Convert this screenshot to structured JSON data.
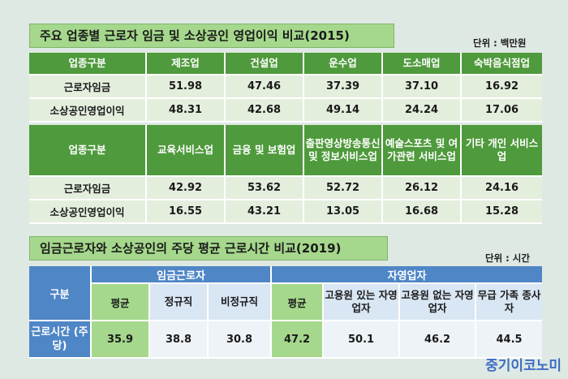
{
  "section1": {
    "title": "주요 업종별 근로자 임금 및 소상공인 영업이익 비교(2015)",
    "unit": "단위 : 백만원",
    "block1": {
      "header": [
        "업종구분",
        "제조업",
        "건설업",
        "운수업",
        "도소매업",
        "숙박음식점업"
      ],
      "rows": [
        {
          "label": "근로자임금",
          "values": [
            "51.98",
            "47.46",
            "37.39",
            "37.10",
            "16.92"
          ]
        },
        {
          "label": "소상공인영업이익",
          "values": [
            "48.31",
            "42.68",
            "49.14",
            "24.24",
            "17.06"
          ]
        }
      ]
    },
    "block2": {
      "header": [
        "업종구분",
        "교육서비스업",
        "금융 및 보험업",
        "출판영상방송통신 및 정보서비스업",
        "예술스포츠 및 여가관련 서비스업",
        "기타 개인 서비스업"
      ],
      "rows": [
        {
          "label": "근로자임금",
          "values": [
            "42.92",
            "53.62",
            "52.72",
            "26.12",
            "24.16"
          ]
        },
        {
          "label": "소상공인영업이익",
          "values": [
            "16.55",
            "43.21",
            "13.05",
            "16.68",
            "15.28"
          ]
        }
      ]
    }
  },
  "section2": {
    "title": "임금근로자와 소상공인의 주당 평균 근로시간 비교(2019)",
    "unit": "단위 : 시간",
    "row_header": "구분",
    "group1": "임금근로자",
    "group2": "자영업자",
    "sub_headers": [
      "평균",
      "정규직",
      "비정규직",
      "평균",
      "고용원 있는 자영업자",
      "고용원 없는 자영업자",
      "무급 가족 종사자"
    ],
    "row_label": "근로시간 (주당)",
    "values": [
      "35.9",
      "38.8",
      "30.8",
      "47.2",
      "50.1",
      "46.2",
      "44.5"
    ]
  },
  "brand": "중기이코노미",
  "colors": {
    "background": "#dfe9e3",
    "green_header": "#4f9a3c",
    "light_green": "#a5d88c",
    "blue_header": "#4f86c6",
    "brand_blue": "#3d6ec4"
  }
}
